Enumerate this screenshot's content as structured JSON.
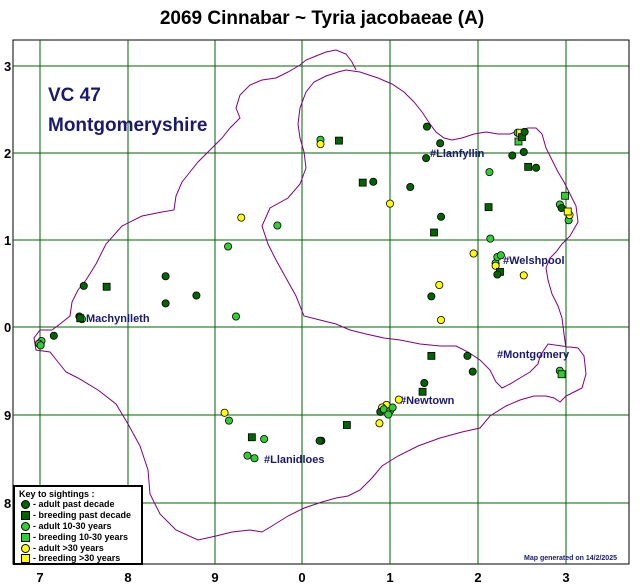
{
  "title": "2069 Cinnabar ~ Tyria jacobaeae (A)",
  "vc_code": "VC 47",
  "vc_name": "Montgomeryshire",
  "footer": "Map generated on 14/2/2025",
  "grid": {
    "x_labels": [
      "7",
      "8",
      "9",
      "0",
      "1",
      "2",
      "3"
    ],
    "y_labels": [
      "3",
      "2",
      "1",
      "0",
      "9",
      "8"
    ]
  },
  "towns": [
    "#Llanfyllin",
    "#Welshpool",
    "Machynlleth",
    "#Montgomery",
    "#Newtown",
    "#Llanidloes"
  ],
  "colors": {
    "boundary": "#800080",
    "grid": "#006400",
    "label": "#191970",
    "adult_past_decade": "#006400",
    "breeding_past_decade": "#006400",
    "adult_10_30": "#32cd32",
    "breeding_10_30": "#32cd32",
    "adult_30plus": "#ffff00",
    "breeding_30plus": "#ffff00"
  },
  "key": {
    "heading": "Key to sightings :",
    "items": [
      {
        "label": "- adult past decade",
        "shape": "circle",
        "color": "#006400"
      },
      {
        "label": "- breeding past decade",
        "shape": "square",
        "color": "#006400"
      },
      {
        "label": "- adult 10-30 years",
        "shape": "circle",
        "color": "#32cd32"
      },
      {
        "label": "- breeding 10-30 years",
        "shape": "square",
        "color": "#32cd32"
      },
      {
        "label": "- adult >30 years",
        "shape": "circle",
        "color": "#ffff00"
      },
      {
        "label": "- breeding >30 years",
        "shape": "square",
        "color": "#ffff00"
      }
    ]
  },
  "sightings": [
    {
      "e": 0.21,
      "n": 2.14,
      "cat": "adult_10_30"
    },
    {
      "e": 0.21,
      "n": 2.09,
      "cat": "adult_30plus"
    },
    {
      "e": 0.42,
      "n": 2.13,
      "cat": "breeding_past_decade"
    },
    {
      "e": 0.69,
      "n": 1.65,
      "cat": "breeding_past_decade"
    },
    {
      "e": 0.81,
      "n": 1.66,
      "cat": "adult_past_decade"
    },
    {
      "e": 1.0,
      "n": 1.41,
      "cat": "adult_30plus"
    },
    {
      "e": 1.23,
      "n": 1.6,
      "cat": "adult_past_decade"
    },
    {
      "e": 1.42,
      "n": 2.29,
      "cat": "adult_past_decade"
    },
    {
      "e": 1.41,
      "n": 1.93,
      "cat": "adult_past_decade"
    },
    {
      "e": 1.57,
      "n": 2.1,
      "cat": "adult_past_decade"
    },
    {
      "e": 1.58,
      "n": 1.26,
      "cat": "adult_past_decade"
    },
    {
      "e": 1.5,
      "n": 1.08,
      "cat": "breeding_past_decade"
    },
    {
      "e": 1.95,
      "n": 0.84,
      "cat": "adult_30plus"
    },
    {
      "e": 1.56,
      "n": 0.48,
      "cat": "adult_30plus"
    },
    {
      "e": 1.47,
      "n": 0.35,
      "cat": "adult_past_decade"
    },
    {
      "e": 1.58,
      "n": 0.08,
      "cat": "adult_30plus"
    },
    {
      "e": 1.47,
      "n": -0.33,
      "cat": "breeding_past_decade"
    },
    {
      "e": 1.88,
      "n": -0.33,
      "cat": "adult_past_decade"
    },
    {
      "e": 1.94,
      "n": -0.51,
      "cat": "adult_past_decade"
    },
    {
      "e": 2.14,
      "n": 1.01,
      "cat": "adult_10_30"
    },
    {
      "e": 2.2,
      "n": 0.73,
      "cat": "adult_10_30"
    },
    {
      "e": 2.22,
      "n": 0.8,
      "cat": "adult_10_30"
    },
    {
      "e": 2.26,
      "n": 0.82,
      "cat": "adult_10_30"
    },
    {
      "e": 2.2,
      "n": 0.7,
      "cat": "adult_30plus"
    },
    {
      "e": 2.25,
      "n": 0.63,
      "cat": "breeding_past_decade"
    },
    {
      "e": 2.22,
      "n": 0.6,
      "cat": "adult_past_decade"
    },
    {
      "e": 2.52,
      "n": 0.59,
      "cat": "adult_30plus"
    },
    {
      "e": 2.13,
      "n": 1.77,
      "cat": "adult_10_30"
    },
    {
      "e": 2.12,
      "n": 1.37,
      "cat": "breeding_past_decade"
    },
    {
      "e": 2.39,
      "n": 1.96,
      "cat": "adult_past_decade"
    },
    {
      "e": 2.45,
      "n": 2.22,
      "cat": "adult_10_30"
    },
    {
      "e": 2.48,
      "n": 2.22,
      "cat": "breeding_30plus"
    },
    {
      "e": 2.46,
      "n": 2.12,
      "cat": "breeding_10_30"
    },
    {
      "e": 2.5,
      "n": 2.17,
      "cat": "breeding_past_decade"
    },
    {
      "e": 2.53,
      "n": 2.23,
      "cat": "adult_past_decade"
    },
    {
      "e": 2.57,
      "n": 1.83,
      "cat": "breeding_past_decade"
    },
    {
      "e": 2.66,
      "n": 1.82,
      "cat": "adult_past_decade"
    },
    {
      "e": 2.52,
      "n": 2.0,
      "cat": "adult_past_decade"
    },
    {
      "e": 2.93,
      "n": 1.4,
      "cat": "adult_10_30"
    },
    {
      "e": 2.99,
      "n": 1.5,
      "cat": "breeding_10_30"
    },
    {
      "e": 2.95,
      "n": 1.36,
      "cat": "adult_past_decade"
    },
    {
      "e": 3.03,
      "n": 1.22,
      "cat": "adult_10_30"
    },
    {
      "e": 3.04,
      "n": 1.28,
      "cat": "adult_30plus"
    },
    {
      "e": 3.02,
      "n": 1.32,
      "cat": "breeding_30plus"
    },
    {
      "e": 2.93,
      "n": -0.5,
      "cat": "adult_10_30"
    },
    {
      "e": 2.95,
      "n": -0.54,
      "cat": "breeding_10_30"
    },
    {
      "e": 1.39,
      "n": -0.64,
      "cat": "adult_past_decade"
    },
    {
      "e": 1.37,
      "n": -0.74,
      "cat": "breeding_past_decade"
    },
    {
      "e": 1.1,
      "n": -0.83,
      "cat": "adult_30plus"
    },
    {
      "e": 0.96,
      "n": -0.89,
      "cat": "adult_30plus"
    },
    {
      "e": 0.91,
      "n": -0.92,
      "cat": "adult_30plus"
    },
    {
      "e": 0.89,
      "n": -0.97,
      "cat": "adult_past_decade"
    },
    {
      "e": 0.93,
      "n": -0.94,
      "cat": "adult_10_30"
    },
    {
      "e": 1.0,
      "n": -0.96,
      "cat": "adult_10_30"
    },
    {
      "e": 1.03,
      "n": -0.92,
      "cat": "adult_10_30"
    },
    {
      "e": 0.98,
      "n": -1.0,
      "cat": "adult_10_30"
    },
    {
      "e": 0.88,
      "n": -1.1,
      "cat": "adult_30plus"
    },
    {
      "e": 0.51,
      "n": -1.12,
      "cat": "breeding_past_decade"
    },
    {
      "e": 0.22,
      "n": -1.3,
      "cat": "adult_past_decade"
    },
    {
      "e": 0.2,
      "n": -1.3,
      "cat": "adult_past_decade"
    },
    {
      "e": -0.57,
      "n": -1.26,
      "cat": "breeding_past_decade"
    },
    {
      "e": -0.43,
      "n": -1.28,
      "cat": "adult_10_30"
    },
    {
      "e": -0.62,
      "n": -1.47,
      "cat": "adult_10_30"
    },
    {
      "e": -0.54,
      "n": -1.5,
      "cat": "adult_10_30"
    },
    {
      "e": -0.88,
      "n": -0.98,
      "cat": "adult_30plus"
    },
    {
      "e": -0.83,
      "n": -1.07,
      "cat": "adult_10_30"
    },
    {
      "e": -0.69,
      "n": 1.25,
      "cat": "adult_30plus"
    },
    {
      "e": -0.28,
      "n": 1.16,
      "cat": "adult_10_30"
    },
    {
      "e": -0.84,
      "n": 0.92,
      "cat": "adult_10_30"
    },
    {
      "e": -1.55,
      "n": 0.58,
      "cat": "adult_past_decade"
    },
    {
      "e": -1.55,
      "n": 0.27,
      "cat": "adult_past_decade"
    },
    {
      "e": -1.2,
      "n": 0.36,
      "cat": "adult_past_decade"
    },
    {
      "e": -0.75,
      "n": 0.12,
      "cat": "adult_10_30"
    },
    {
      "e": -2.22,
      "n": 0.46,
      "cat": "breeding_past_decade"
    },
    {
      "e": -2.48,
      "n": 0.47,
      "cat": "adult_past_decade"
    },
    {
      "e": -2.53,
      "n": 0.12,
      "cat": "adult_past_decade"
    },
    {
      "e": -2.5,
      "n": 0.09,
      "cat": "adult_10_30"
    },
    {
      "e": -2.52,
      "n": 0.1,
      "cat": "breeding_past_decade"
    },
    {
      "e": -2.82,
      "n": -0.1,
      "cat": "adult_past_decade"
    },
    {
      "e": -2.96,
      "n": -0.16,
      "cat": "adult_10_30"
    },
    {
      "e": -2.99,
      "n": -0.19,
      "cat": "adult_10_30"
    },
    {
      "e": -2.97,
      "n": -0.21,
      "cat": "adult_10_30"
    }
  ]
}
